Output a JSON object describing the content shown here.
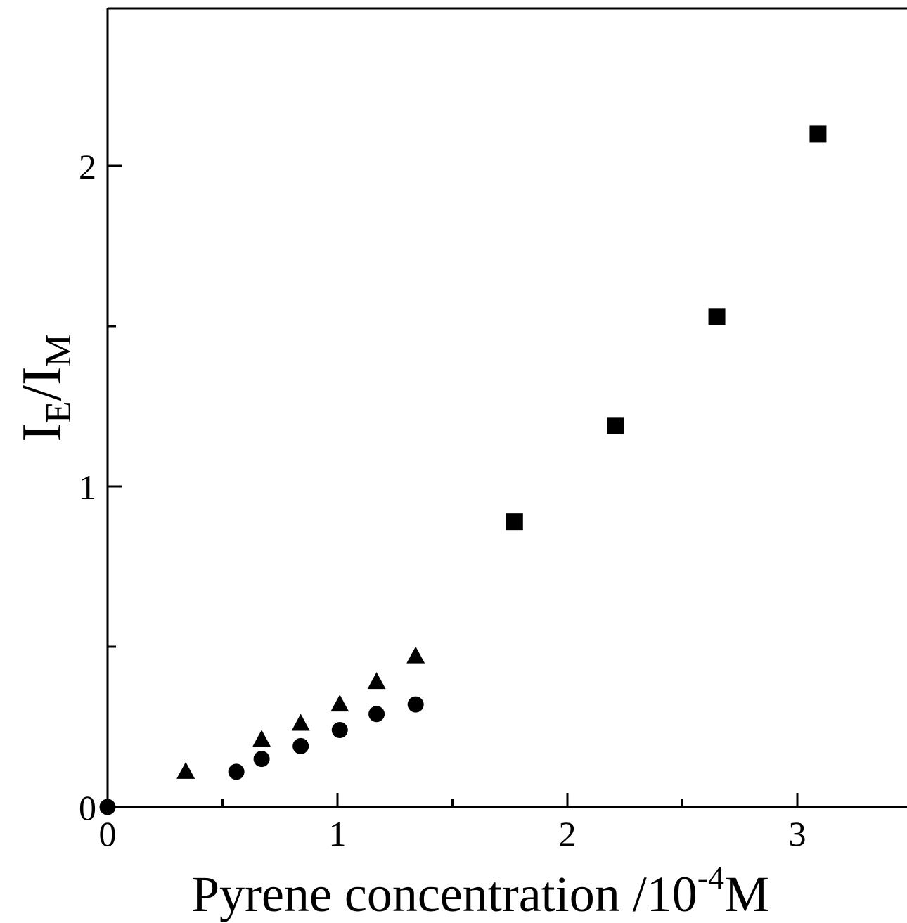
{
  "chart_data": {
    "type": "scatter",
    "title": "",
    "xlabel": {
      "main": "Pyrene concentration /10",
      "superscript": "-4",
      "unit": "M"
    },
    "ylabel": {
      "main1": "I",
      "sub1": "E",
      "slash": "/",
      "main2": "I",
      "sub2": "M"
    },
    "xlim": [
      0,
      3.5
    ],
    "ylim": [
      0,
      2.5
    ],
    "x_major_ticks": [
      0,
      1,
      2,
      3
    ],
    "x_major_tick_labels": [
      "0",
      "1",
      "2",
      "3"
    ],
    "x_minor_ticks": [
      0.5,
      1.5,
      2.5
    ],
    "y_major_ticks": [
      0,
      1,
      2
    ],
    "y_major_tick_labels": [
      "0",
      "1",
      "2"
    ],
    "y_minor_ticks": [
      0.5,
      1.5
    ],
    "grid": false,
    "legend": "none",
    "series": [
      {
        "marker": "square",
        "color": "#000000",
        "points": [
          {
            "x": 1.77,
            "y": 0.89
          },
          {
            "x": 2.21,
            "y": 1.19
          },
          {
            "x": 2.65,
            "y": 1.53
          },
          {
            "x": 3.09,
            "y": 2.1
          }
        ]
      },
      {
        "marker": "triangle",
        "color": "#000000",
        "points": [
          {
            "x": 0.34,
            "y": 0.11
          },
          {
            "x": 0.67,
            "y": 0.21
          },
          {
            "x": 0.84,
            "y": 0.26
          },
          {
            "x": 1.01,
            "y": 0.32
          },
          {
            "x": 1.17,
            "y": 0.39
          },
          {
            "x": 1.34,
            "y": 0.47
          }
        ]
      },
      {
        "marker": "circle",
        "color": "#000000",
        "points": [
          {
            "x": 0.0,
            "y": 0.0
          },
          {
            "x": 0.56,
            "y": 0.11
          },
          {
            "x": 0.67,
            "y": 0.15
          },
          {
            "x": 0.84,
            "y": 0.19
          },
          {
            "x": 1.01,
            "y": 0.24
          },
          {
            "x": 1.17,
            "y": 0.29
          },
          {
            "x": 1.34,
            "y": 0.32
          }
        ]
      }
    ]
  }
}
